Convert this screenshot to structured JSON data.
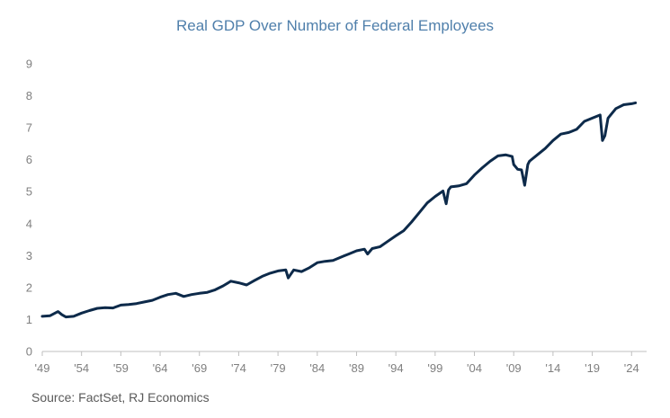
{
  "chart_data": {
    "type": "line",
    "title": "Real GDP Over Number of Federal Employees",
    "source": "Source: FactSet, RJ Economics",
    "xlabel": "",
    "ylabel": "",
    "ylim": [
      0,
      9
    ],
    "yticks": [
      "0",
      "1",
      "2",
      "3",
      "4",
      "5",
      "6",
      "7",
      "8",
      "9"
    ],
    "xlim": [
      1949,
      2025
    ],
    "xticks": [
      {
        "year": 1949,
        "label": "'49"
      },
      {
        "year": 1954,
        "label": "'54"
      },
      {
        "year": 1959,
        "label": "'59"
      },
      {
        "year": 1964,
        "label": "'64"
      },
      {
        "year": 1969,
        "label": "'69"
      },
      {
        "year": 1974,
        "label": "'74"
      },
      {
        "year": 1979,
        "label": "'79"
      },
      {
        "year": 1984,
        "label": "'84"
      },
      {
        "year": 1989,
        "label": "'89"
      },
      {
        "year": 1994,
        "label": "'94"
      },
      {
        "year": 1999,
        "label": "'99"
      },
      {
        "year": 2004,
        "label": "'04"
      },
      {
        "year": 2009,
        "label": "'09"
      },
      {
        "year": 2014,
        "label": "'14"
      },
      {
        "year": 2019,
        "label": "'19"
      },
      {
        "year": 2024,
        "label": "'24"
      }
    ],
    "grid": false,
    "line_color": "#0d2a4a",
    "series": [
      {
        "x": [
          1949,
          1950,
          1951,
          1951.5,
          1952,
          1953,
          1954,
          1955,
          1956,
          1957,
          1958,
          1959,
          1960,
          1961,
          1962,
          1963,
          1964,
          1965,
          1966,
          1967,
          1968,
          1969,
          1970,
          1971,
          1972,
          1973,
          1974,
          1975,
          1976,
          1977,
          1978,
          1979,
          1980,
          1980.3,
          1981,
          1982,
          1983,
          1984,
          1985,
          1986,
          1987,
          1988,
          1989,
          1990,
          1990.4,
          1991,
          1992,
          1993,
          1994,
          1995,
          1996,
          1997,
          1998,
          1999,
          2000,
          2000.4,
          2000.7,
          2001,
          2002,
          2003,
          2004,
          2005,
          2006,
          2007,
          2008,
          2008.8,
          2009,
          2009.5,
          2010,
          2010.4,
          2010.8,
          2011,
          2012,
          2013,
          2014,
          2015,
          2016,
          2017,
          2018,
          2019,
          2020,
          2020.3,
          2020.6,
          2021,
          2022,
          2023,
          2024,
          2024.5
        ],
        "values": [
          1.1,
          1.12,
          1.25,
          1.15,
          1.08,
          1.1,
          1.2,
          1.28,
          1.35,
          1.37,
          1.36,
          1.45,
          1.47,
          1.5,
          1.55,
          1.6,
          1.7,
          1.78,
          1.82,
          1.72,
          1.78,
          1.82,
          1.85,
          1.93,
          2.05,
          2.2,
          2.15,
          2.08,
          2.22,
          2.35,
          2.45,
          2.52,
          2.55,
          2.3,
          2.55,
          2.5,
          2.62,
          2.78,
          2.82,
          2.85,
          2.95,
          3.05,
          3.15,
          3.2,
          3.05,
          3.22,
          3.28,
          3.45,
          3.62,
          3.78,
          4.05,
          4.35,
          4.65,
          4.85,
          5.02,
          4.62,
          5.05,
          5.15,
          5.18,
          5.25,
          5.52,
          5.75,
          5.95,
          6.12,
          6.15,
          6.1,
          5.85,
          5.7,
          5.68,
          5.2,
          5.85,
          5.95,
          6.15,
          6.35,
          6.6,
          6.8,
          6.85,
          6.95,
          7.2,
          7.3,
          7.4,
          6.6,
          6.75,
          7.3,
          7.6,
          7.72,
          7.75,
          7.78
        ]
      }
    ]
  }
}
